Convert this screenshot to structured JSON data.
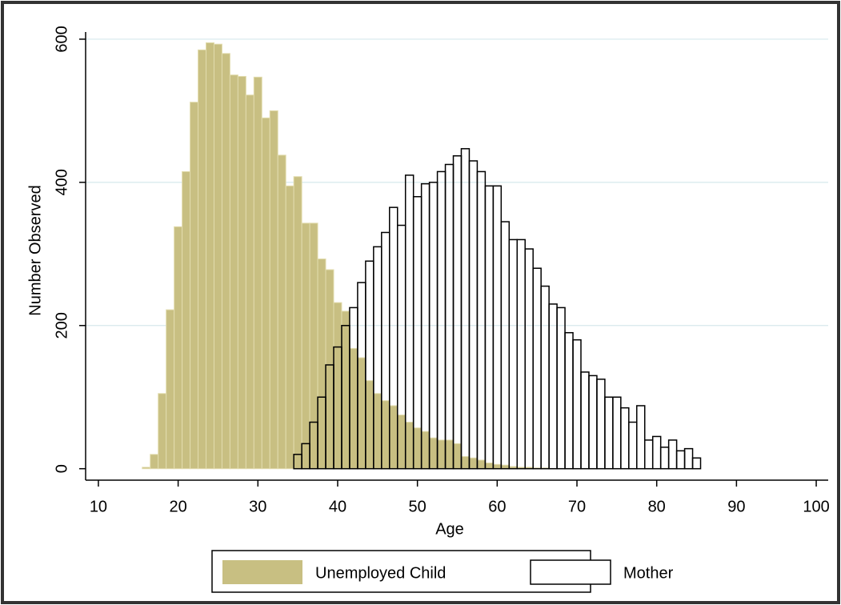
{
  "chart_data": {
    "type": "histogram",
    "x_label": "Age",
    "y_label": "Number Observed",
    "xlim": [
      8.4,
      101.5
    ],
    "ylim": [
      -16,
      610
    ],
    "xticks": [
      10,
      20,
      30,
      40,
      50,
      60,
      70,
      80,
      90,
      100
    ],
    "yticks": [
      0,
      200,
      400,
      600
    ],
    "grid": true,
    "series": [
      {
        "name": "Unemployed Child",
        "color": "#c8bf82",
        "fill": true,
        "bins": [
          15.5,
          16.5,
          17.5,
          18.5,
          19.5,
          20.5,
          21.5,
          22.5,
          23.5,
          24.5,
          25.5,
          26.5,
          27.5,
          28.5,
          29.5,
          30.5,
          31.5,
          32.5,
          33.5,
          34.5,
          35.5,
          36.5,
          37.5,
          38.5,
          39.5,
          40.5,
          41.5,
          42.5,
          43.5,
          44.5,
          45.5,
          46.5,
          47.5,
          48.5,
          49.5,
          50.5,
          51.5,
          52.5,
          53.5,
          54.5,
          55.5,
          56.5,
          57.5,
          58.5,
          59.5,
          60.5,
          61.5,
          62.5,
          63.5,
          64.5,
          65.5,
          66.5
        ],
        "values": [
          2,
          20,
          105,
          222,
          338,
          415,
          512,
          585,
          595,
          593,
          580,
          550,
          548,
          522,
          547,
          490,
          500,
          438,
          395,
          408,
          343,
          343,
          293,
          278,
          232,
          220,
          168,
          155,
          123,
          105,
          95,
          88,
          75,
          65,
          57,
          52,
          43,
          40,
          40,
          35,
          17,
          15,
          12,
          8,
          6,
          5,
          3,
          2,
          2,
          1,
          1
        ]
      },
      {
        "name": "Mother",
        "color": "#000000",
        "fill": false,
        "bins": [
          34.5,
          35.5,
          36.5,
          37.5,
          38.5,
          39.5,
          40.5,
          41.5,
          42.5,
          43.5,
          44.5,
          45.5,
          46.5,
          47.5,
          48.5,
          49.5,
          50.5,
          51.5,
          52.5,
          53.5,
          54.5,
          55.5,
          56.5,
          57.5,
          58.5,
          59.5,
          60.5,
          61.5,
          62.5,
          63.5,
          64.5,
          65.5,
          66.5,
          67.5,
          68.5,
          69.5,
          70.5,
          71.5,
          72.5,
          73.5,
          74.5,
          75.5,
          76.5,
          77.5,
          78.5,
          79.5,
          80.5,
          81.5,
          82.5,
          83.5,
          84.5,
          85.5
        ],
        "values": [
          20,
          35,
          65,
          100,
          145,
          170,
          200,
          225,
          260,
          290,
          310,
          330,
          365,
          340,
          410,
          380,
          398,
          400,
          415,
          425,
          437,
          447,
          430,
          415,
          395,
          395,
          345,
          320,
          320,
          307,
          280,
          255,
          230,
          225,
          190,
          180,
          135,
          130,
          125,
          100,
          100,
          85,
          65,
          88,
          40,
          45,
          30,
          40,
          25,
          28,
          15
        ]
      }
    ]
  }
}
